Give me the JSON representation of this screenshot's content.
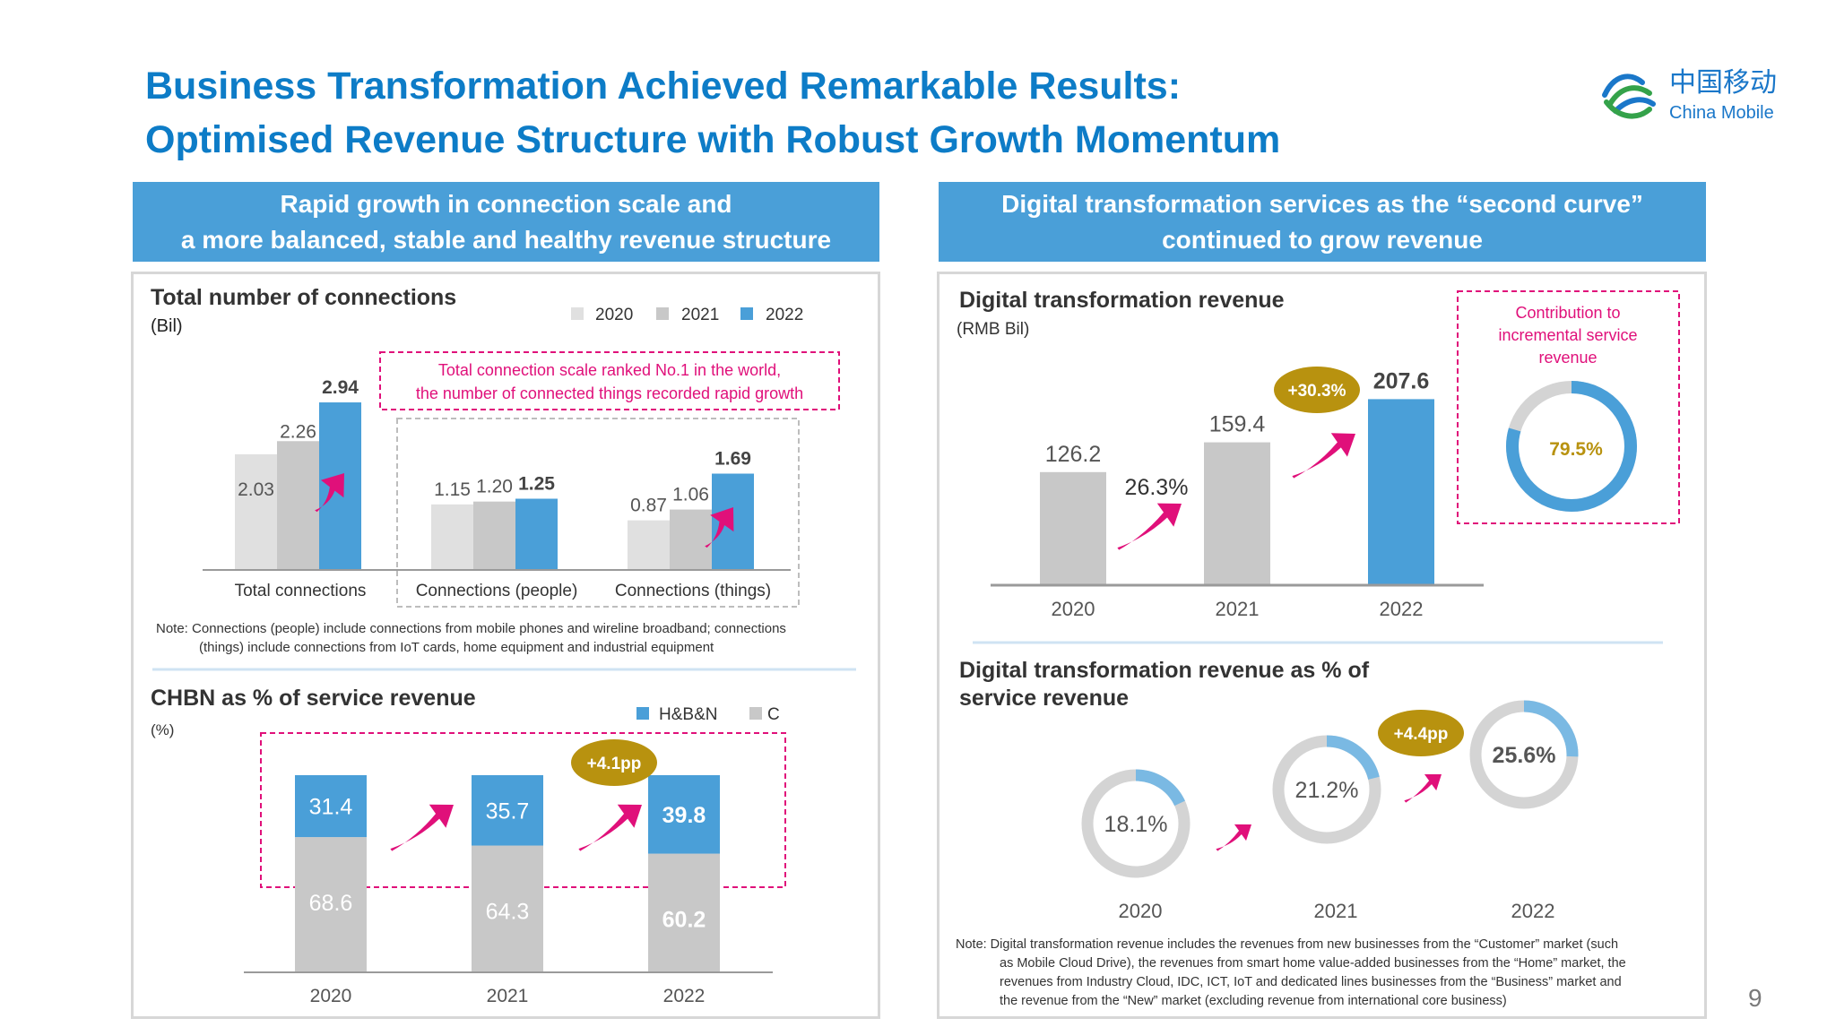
{
  "header": {
    "title_line1": "Business Transformation Achieved Remarkable Results:",
    "title_line2": "Optimised Revenue Structure with Robust Growth Momentum",
    "logo_cn": "中国移动",
    "logo_en": "China Mobile",
    "page_number": "9"
  },
  "colors": {
    "blue": "#4a9fd8",
    "light_gray": "#e0e0e0",
    "gray": "#c8c8c8",
    "magenta": "#e0107a",
    "gold": "#b8920f",
    "title": "#0d7cc7"
  },
  "left": {
    "bar_line1": "Rapid growth in connection scale and",
    "bar_line2": "a more balanced, stable and healthy revenue structure"
  },
  "right": {
    "bar_line1": "Digital transformation services as the “second curve”",
    "bar_line2": "continued to grow revenue"
  },
  "chart_data": [
    {
      "id": "connections",
      "type": "bar",
      "title": "Total number of connections",
      "unit": "(Bil)",
      "categories": [
        "Total connections",
        "Connections (people)",
        "Connections (things)"
      ],
      "series": [
        {
          "name": "2020",
          "values": [
            2.03,
            1.15,
            0.87
          ]
        },
        {
          "name": "2021",
          "values": [
            2.26,
            1.2,
            1.06
          ]
        },
        {
          "name": "2022",
          "values": [
            2.94,
            1.25,
            1.69
          ]
        }
      ],
      "value_labels": [
        [
          "2.03",
          "1.15",
          "0.87"
        ],
        [
          "2.26",
          "1.20",
          "1.06"
        ],
        [
          "2.94",
          "1.25",
          "1.69"
        ]
      ],
      "annotation": [
        "Total connection scale ranked No.1 in the world,",
        "the number of connected things recorded rapid growth"
      ],
      "note_line1": "Note: Connections (people) include connections from mobile phones and wireline broadband; connections",
      "note_line2": "(things) include connections from IoT cards, home equipment and industrial equipment"
    },
    {
      "id": "chbn",
      "type": "bar",
      "stacked": true,
      "title": "CHBN as % of service revenue",
      "unit": "(%)",
      "categories": [
        "2020",
        "2021",
        "2022"
      ],
      "series": [
        {
          "name": "H&B&N",
          "values": [
            31.4,
            35.7,
            39.8
          ]
        },
        {
          "name": "C",
          "values": [
            68.6,
            64.3,
            60.2
          ]
        }
      ],
      "value_labels": [
        [
          "31.4",
          "35.7",
          "39.8"
        ],
        [
          "68.6",
          "64.3",
          "60.2"
        ]
      ],
      "badge": "+4.1pp"
    },
    {
      "id": "dt_revenue",
      "type": "bar",
      "title": "Digital transformation revenue",
      "unit": "(RMB Bil)",
      "categories": [
        "2020",
        "2021",
        "2022"
      ],
      "values": [
        126.2,
        159.4,
        207.6
      ],
      "value_labels": [
        "126.2",
        "159.4",
        "207.6"
      ],
      "growth_2021": "26.3%",
      "growth_badge": "+30.3%",
      "contribution_label": [
        "Contribution to",
        "incremental service",
        "revenue"
      ],
      "contribution_value": 79.5,
      "contribution_text": "79.5%"
    },
    {
      "id": "dt_share",
      "type": "pie",
      "title_line1": "Digital transformation revenue as % of",
      "title_line2": "service revenue",
      "categories": [
        "2020",
        "2021",
        "2022"
      ],
      "values": [
        18.1,
        21.2,
        25.6
      ],
      "value_labels": [
        "18.1%",
        "21.2%",
        "25.6%"
      ],
      "badge": "+4.4pp",
      "note_line1": "Note:  Digital transformation revenue includes the revenues from new businesses from the “Customer” market (such",
      "note_line2": "as Mobile Cloud Drive), the revenues from smart home value-added businesses from the “Home” market, the",
      "note_line3": "revenues from Industry Cloud, IDC, ICT, IoT and dedicated lines businesses from the “Business” market and",
      "note_line4": "the revenue from the “New” market (excluding revenue from international core business)"
    }
  ]
}
